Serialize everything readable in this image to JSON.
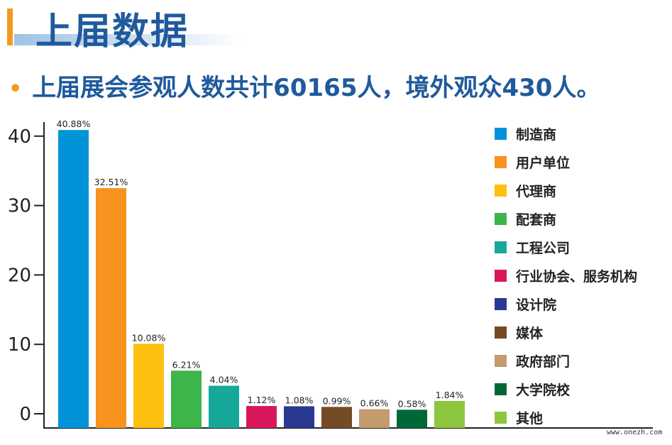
{
  "header": {
    "title": "上届数据"
  },
  "subtitle": "上届展会参观人数共计60165人，境外观众430人。",
  "watermark": "www.onezh.com",
  "chart_data": {
    "type": "bar",
    "categories": [
      "制造商",
      "用户单位",
      "代理商",
      "配套商",
      "工程公司",
      "行业协会、服务机构",
      "设计院",
      "媒体",
      "政府部门",
      "大学院校",
      "其他"
    ],
    "values": [
      40.88,
      32.51,
      10.08,
      6.21,
      4.04,
      1.12,
      1.08,
      0.99,
      0.66,
      0.58,
      1.84
    ],
    "data_labels": [
      "40.88%",
      "32.51%",
      "10.08%",
      "6.21%",
      "4.04%",
      "1.12%",
      "1.08%",
      "0.99%",
      "0.66%",
      "0.58%",
      "1.84%"
    ],
    "colors": [
      "#0093d8",
      "#f7931e",
      "#fdc010",
      "#3cb54a",
      "#16a99b",
      "#d8175d",
      "#2b3990",
      "#744b24",
      "#c39b6d",
      "#006838",
      "#8dc63f"
    ],
    "yticks": [
      "0",
      "10",
      "20",
      "30",
      "40"
    ],
    "ylim": [
      -2,
      42
    ],
    "legend_position": "right",
    "grid": false,
    "title": "",
    "xlabel": "",
    "ylabel": ""
  }
}
